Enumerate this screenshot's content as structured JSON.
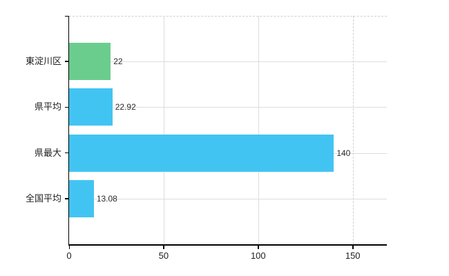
{
  "chart_data": {
    "type": "bar",
    "orientation": "horizontal",
    "title": "",
    "xlabel": "",
    "ylabel": "",
    "categories": [
      "東淀川区",
      "県平均",
      "県最大",
      "全国平均"
    ],
    "values": [
      22,
      22.92,
      140,
      13.08
    ],
    "value_labels": [
      "22",
      "22.92",
      "140",
      "13.08"
    ],
    "bar_colors": [
      "#6acd8d",
      "#42c4f2",
      "#42c4f2",
      "#42c4f2"
    ],
    "xlim": [
      0,
      168
    ],
    "x_ticks": [
      0,
      50,
      100,
      150
    ],
    "x_tick_labels": [
      "0",
      "50",
      "100",
      "150"
    ],
    "legend": "none",
    "grid": {
      "vertical_styles": [
        "none",
        "solid",
        "solid",
        "dashed"
      ],
      "horizontal": "solid",
      "top_border": "dashed",
      "solid_color": "#dadedb",
      "dashed_color": "#d2cdd6"
    },
    "colors": {
      "background": "#ffffff",
      "axis": "#000000",
      "text": "#1d1d1d"
    }
  }
}
